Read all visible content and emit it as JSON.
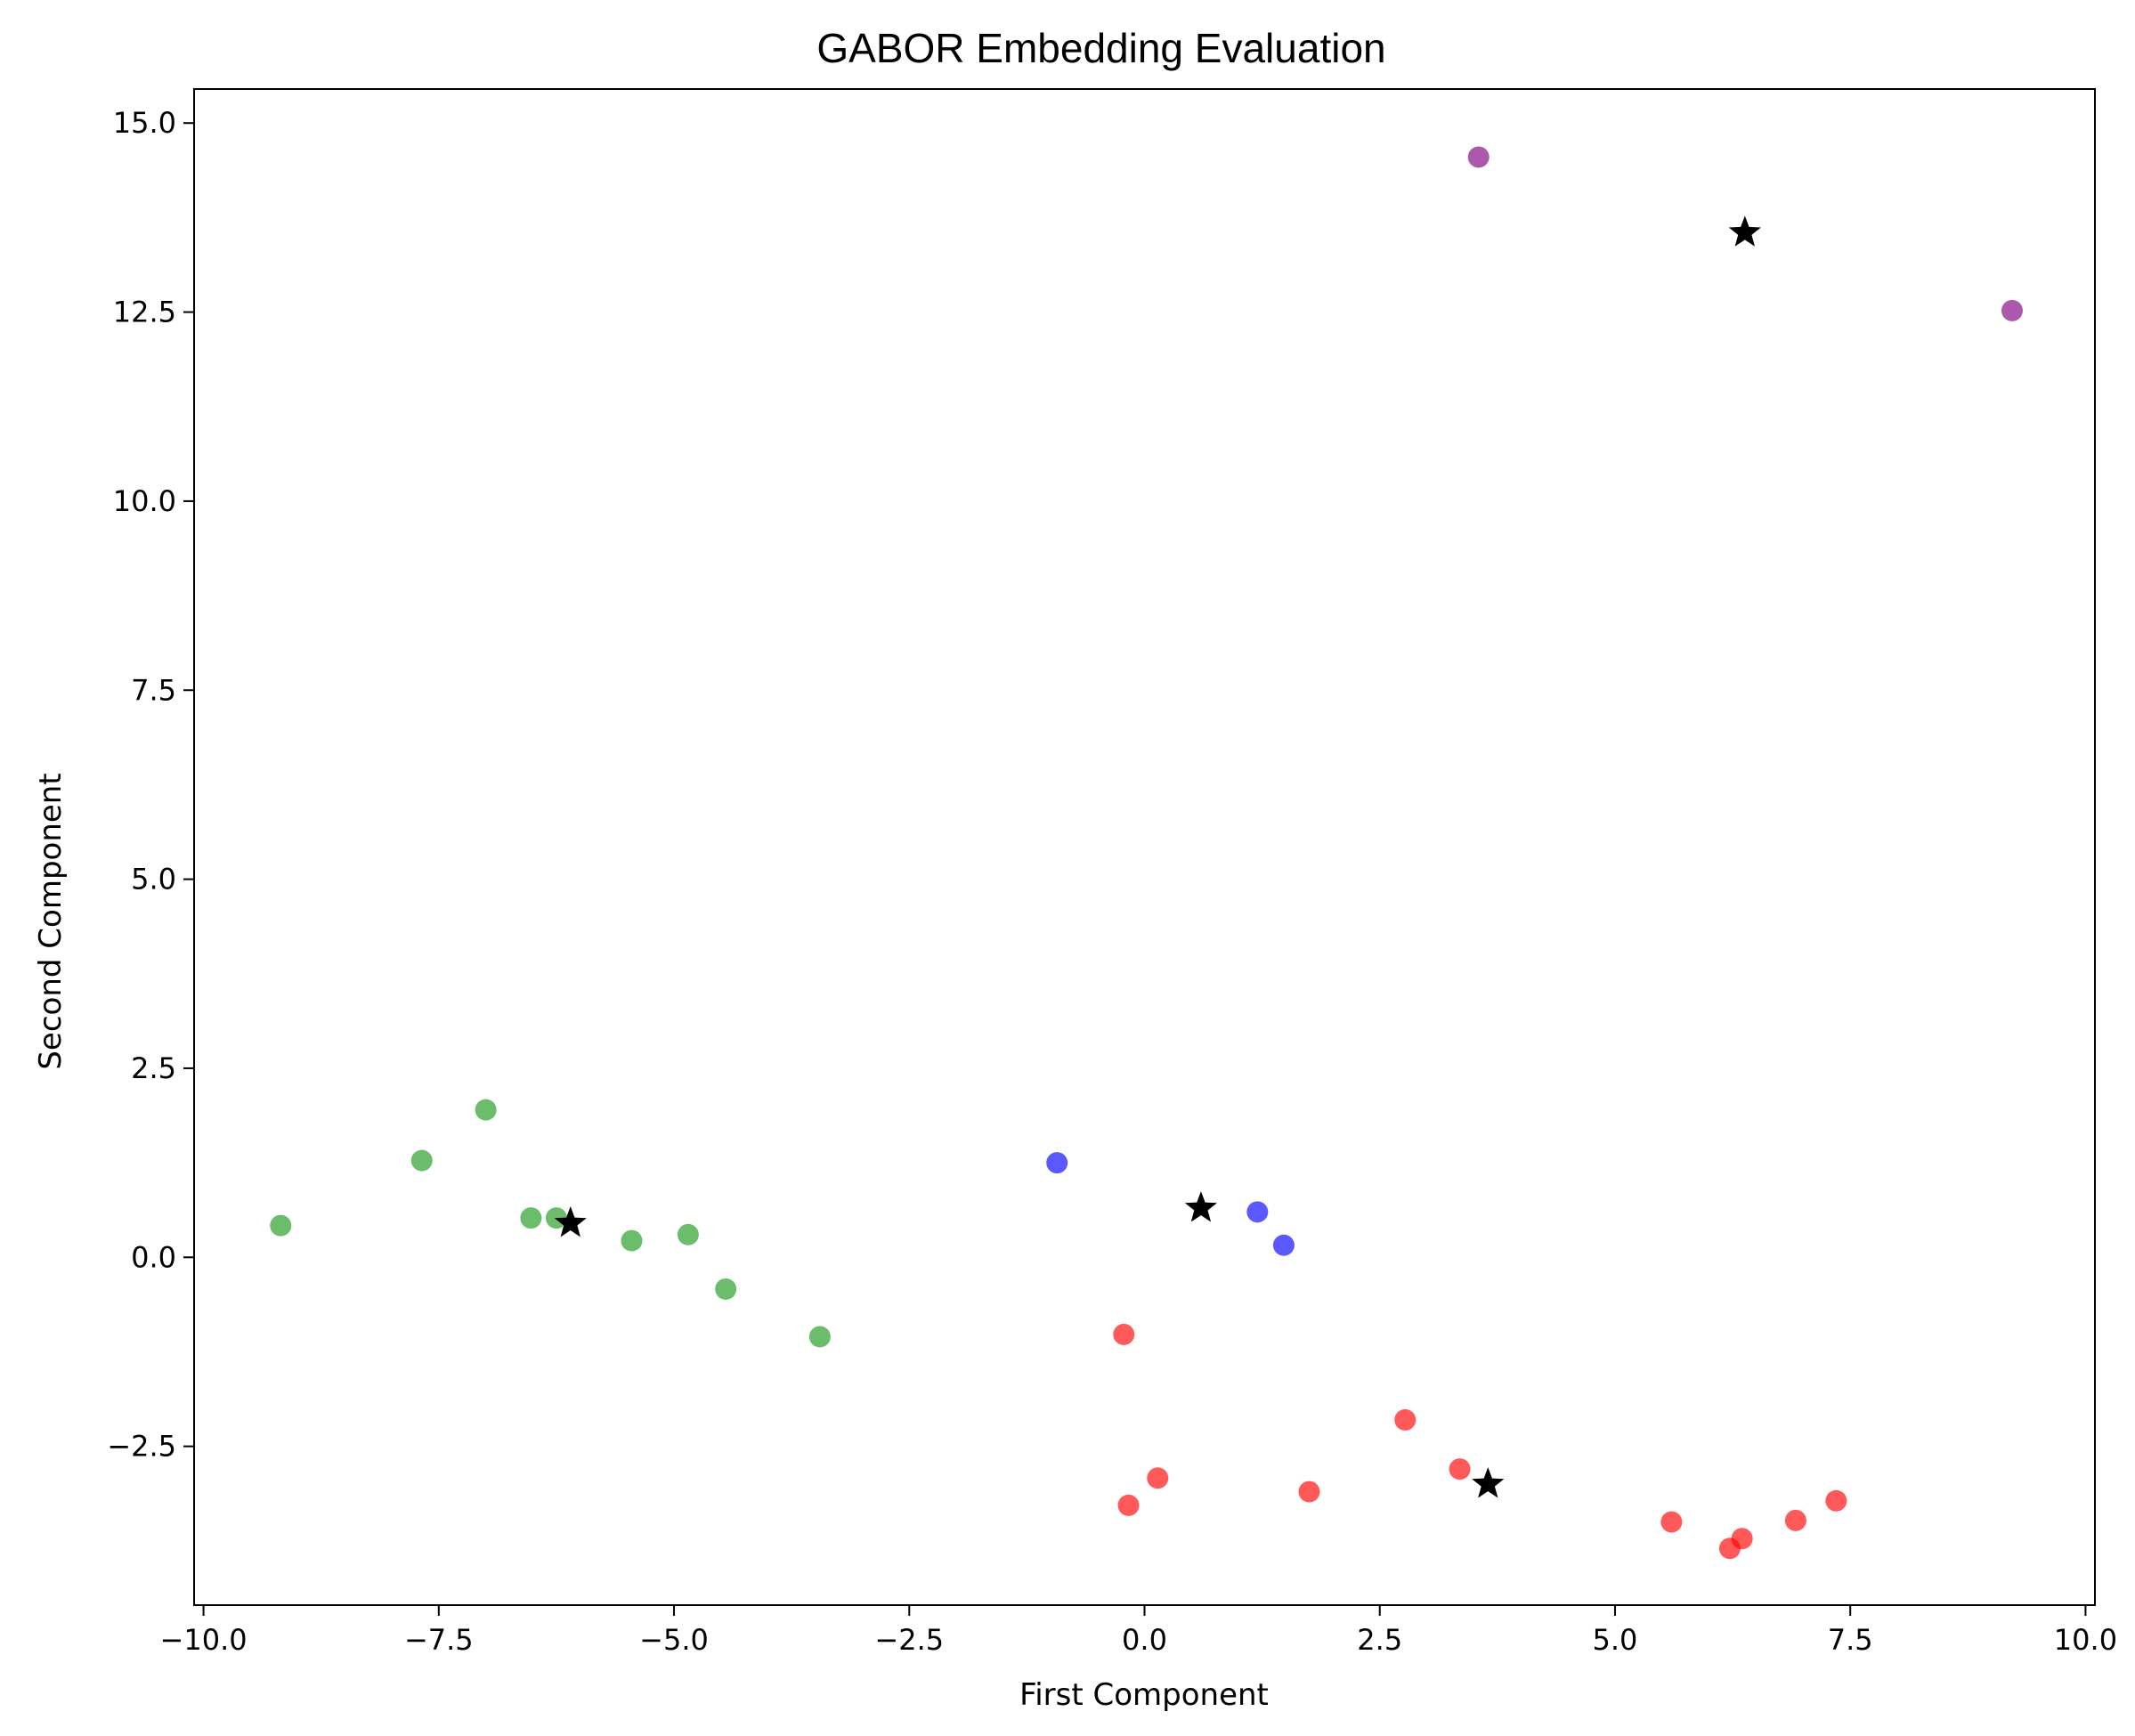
{
  "chart_data": {
    "type": "scatter",
    "title": "GABOR  Embedding  Evaluation",
    "xlabel": "First Component",
    "ylabel": "Second Component",
    "xlim": [
      -10.1,
      10.1
    ],
    "ylim": [
      -4.6,
      15.45
    ],
    "xticks": [
      -10.0,
      -7.5,
      -5.0,
      -2.5,
      0.0,
      2.5,
      5.0,
      7.5,
      10.0
    ],
    "xtick_labels": [
      "−10.0",
      "−7.5",
      "−5.0",
      "−2.5",
      "0.0",
      "2.5",
      "5.0",
      "7.5",
      "10.0"
    ],
    "yticks": [
      -2.5,
      0.0,
      2.5,
      5.0,
      7.5,
      10.0,
      12.5,
      15.0
    ],
    "ytick_labels": [
      "−2.5",
      "0.0",
      "2.5",
      "5.0",
      "7.5",
      "10.0",
      "12.5",
      "15.0"
    ],
    "grid": false,
    "series": [
      {
        "color": "#2ca02c",
        "alpha": 0.7,
        "marker": "circle",
        "points": [
          [
            -9.18,
            0.42
          ],
          [
            -7.68,
            1.28
          ],
          [
            -7.0,
            1.95
          ],
          [
            -6.52,
            0.52
          ],
          [
            -6.25,
            0.52
          ],
          [
            -5.45,
            0.22
          ],
          [
            -4.85,
            0.3
          ],
          [
            -4.45,
            -0.42
          ],
          [
            -3.45,
            -1.05
          ]
        ]
      },
      {
        "color": "#0000ff",
        "alpha": 0.65,
        "marker": "circle",
        "points": [
          [
            -0.93,
            1.25
          ],
          [
            1.2,
            0.6
          ],
          [
            1.48,
            0.16
          ]
        ]
      },
      {
        "color": "#ff0000",
        "alpha": 0.65,
        "marker": "circle",
        "points": [
          [
            -0.22,
            -1.02
          ],
          [
            -0.17,
            -3.28
          ],
          [
            0.14,
            -2.92
          ],
          [
            1.75,
            -3.1
          ],
          [
            2.77,
            -2.15
          ],
          [
            3.35,
            -2.8
          ],
          [
            5.6,
            -3.5
          ],
          [
            6.22,
            -3.85
          ],
          [
            6.35,
            -3.72
          ],
          [
            6.92,
            -3.48
          ],
          [
            7.35,
            -3.22
          ]
        ]
      },
      {
        "color": "#800080",
        "alpha": 0.65,
        "marker": "circle",
        "points": [
          [
            3.55,
            14.55
          ],
          [
            9.22,
            12.52
          ]
        ]
      },
      {
        "color": "#000000",
        "alpha": 1,
        "marker": "star",
        "points": [
          [
            -6.1,
            0.45
          ],
          [
            0.6,
            0.65
          ],
          [
            6.38,
            13.55
          ],
          [
            3.65,
            -3.0
          ]
        ]
      }
    ]
  }
}
